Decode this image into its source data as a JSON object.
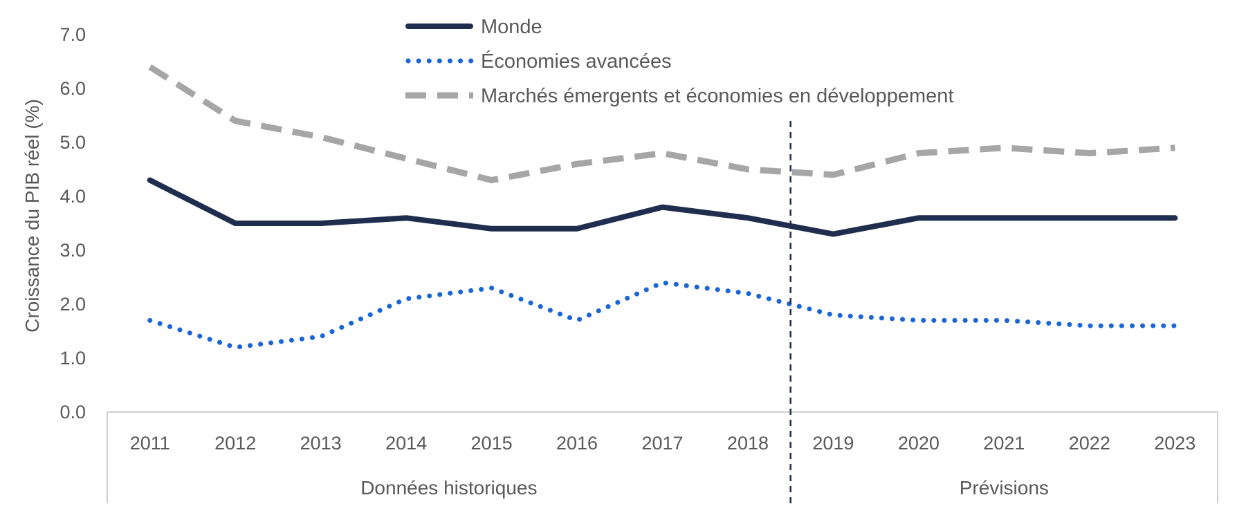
{
  "chart_data": {
    "type": "line",
    "ylabel": "Croissance du PIB réel (%)",
    "xlabel": "",
    "ylim": [
      0,
      7
    ],
    "yticks": [
      "0.0",
      "1.0",
      "2.0",
      "3.0",
      "4.0",
      "5.0",
      "6.0",
      "7.0"
    ],
    "x": [
      "2011",
      "2012",
      "2013",
      "2014",
      "2015",
      "2016",
      "2017",
      "2018",
      "2019",
      "2020",
      "2021",
      "2022",
      "2023"
    ],
    "groups": [
      {
        "label": "Données historiques",
        "years": [
          "2011",
          "2018"
        ]
      },
      {
        "label": "Prévisions",
        "years": [
          "2019",
          "2023"
        ]
      }
    ],
    "series": [
      {
        "name": "Monde",
        "style": "solid",
        "color": "#1f2d4e",
        "values": [
          4.3,
          3.5,
          3.5,
          3.6,
          3.4,
          3.4,
          3.8,
          3.6,
          3.3,
          3.6,
          3.6,
          3.6,
          3.6
        ]
      },
      {
        "name": "Économies avancées",
        "style": "dotted",
        "color": "#1a66d6",
        "values": [
          1.7,
          1.2,
          1.4,
          2.1,
          2.3,
          1.7,
          2.4,
          2.2,
          1.8,
          1.7,
          1.7,
          1.6,
          1.6
        ]
      },
      {
        "name": "Marchés émergents et économies en développement",
        "style": "dashed",
        "color": "#a6a6a6",
        "values": [
          6.4,
          5.4,
          5.1,
          4.7,
          4.3,
          4.6,
          4.8,
          4.5,
          4.4,
          4.8,
          4.9,
          4.8,
          4.9
        ]
      }
    ],
    "grid": false,
    "legend_position": "top-center",
    "divider_between": [
      "2018",
      "2019"
    ],
    "divider_color": "#1f2d4e"
  }
}
